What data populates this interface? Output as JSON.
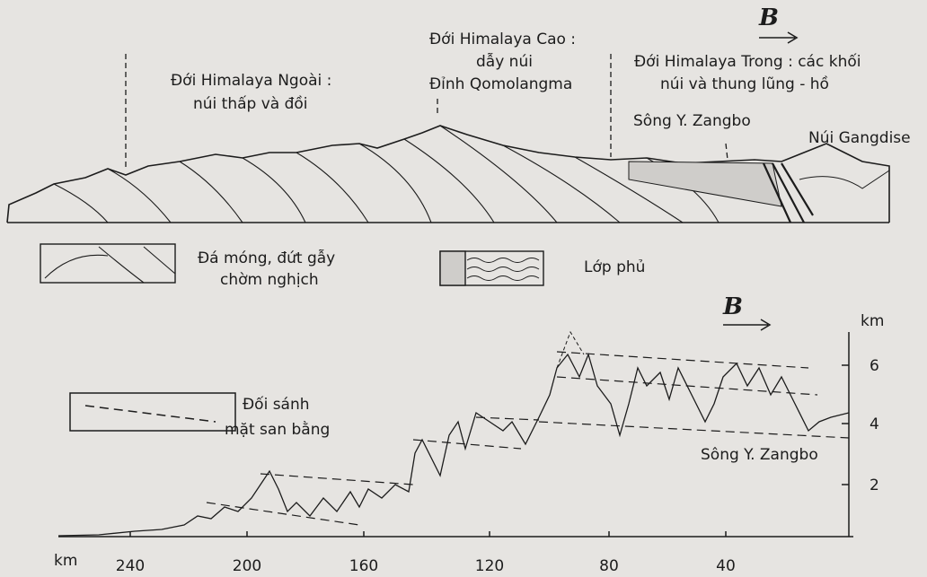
{
  "section": {
    "outer_zone": [
      "Đới Himalaya Ngoài :",
      "núi thấp và đồi"
    ],
    "high_zone": [
      "Đới Himalaya Cao :",
      "dẫy núi",
      "Đỉnh Qomolangma"
    ],
    "inner_zone": [
      "Đới Himalaya Trong : các khối",
      "núi và thung lũng - hồ"
    ],
    "river": "Sông Y. Zangbo",
    "mountain": "Núi Gangdise",
    "direction": "B"
  },
  "section_legend": {
    "basement": [
      "Đá móng, đứt gẫy",
      "chờm nghịch"
    ],
    "cover": "Lớp phủ"
  },
  "profile": {
    "direction": "B",
    "y_unit": "km",
    "y_ticks": [
      "6",
      "4",
      "2"
    ],
    "x_unit": "km",
    "x_ticks": [
      "240",
      "200",
      "160",
      "120",
      "80",
      "40"
    ],
    "legend": [
      "Đối sánh",
      "mặt san bằng"
    ],
    "river": "Sông Y. Zangbo"
  }
}
